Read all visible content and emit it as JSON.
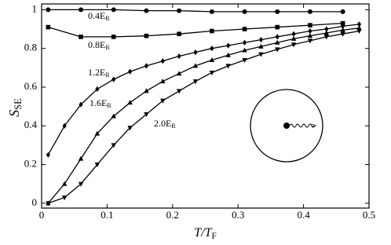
{
  "chart_data": {
    "type": "line",
    "x_label": {
      "text": "T/T",
      "sub": "F"
    },
    "y_label": {
      "text": "S",
      "sub": "SE"
    },
    "xlim": [
      0,
      0.5
    ],
    "ylim": [
      -0.025,
      1.03
    ],
    "xticks": [
      0,
      0.1,
      0.2,
      0.3,
      0.4,
      0.5
    ],
    "yticks": [
      0,
      0.2,
      0.4,
      0.6,
      0.8,
      1
    ],
    "series": [
      {
        "name": "0.4E",
        "name_sub": "R",
        "color": "#000000",
        "marker": "circle",
        "x": [
          0.01,
          0.06,
          0.11,
          0.16,
          0.21,
          0.26,
          0.31,
          0.36,
          0.41,
          0.46
        ],
        "values": [
          1,
          1,
          1,
          0.995,
          0.995,
          0.99,
          0.99,
          0.99,
          0.99,
          0.99
        ]
      },
      {
        "name": "0.8E",
        "name_sub": "R",
        "color": "#000000",
        "marker": "square",
        "x": [
          0.01,
          0.06,
          0.11,
          0.16,
          0.21,
          0.26,
          0.31,
          0.36,
          0.41,
          0.46
        ],
        "values": [
          0.91,
          0.86,
          0.86,
          0.865,
          0.875,
          0.89,
          0.9,
          0.91,
          0.92,
          0.93
        ]
      },
      {
        "name": "1.2E",
        "name_sub": "R",
        "color": "#000000",
        "marker": "diamond",
        "x": [
          0.01,
          0.035,
          0.06,
          0.085,
          0.11,
          0.135,
          0.16,
          0.185,
          0.21,
          0.235,
          0.26,
          0.285,
          0.31,
          0.335,
          0.36,
          0.385,
          0.41,
          0.435,
          0.46,
          0.485
        ],
        "values": [
          0.25,
          0.4,
          0.51,
          0.59,
          0.64,
          0.68,
          0.71,
          0.735,
          0.76,
          0.78,
          0.8,
          0.815,
          0.83,
          0.845,
          0.86,
          0.875,
          0.89,
          0.9,
          0.915,
          0.925
        ]
      },
      {
        "name": "1.6E",
        "name_sub": "R",
        "color": "#000000",
        "marker": "triangle-up",
        "x": [
          0.01,
          0.035,
          0.06,
          0.085,
          0.11,
          0.135,
          0.16,
          0.185,
          0.21,
          0.235,
          0.26,
          0.285,
          0.31,
          0.335,
          0.36,
          0.385,
          0.41,
          0.435,
          0.46,
          0.485
        ],
        "values": [
          0,
          0.1,
          0.23,
          0.36,
          0.45,
          0.52,
          0.58,
          0.63,
          0.67,
          0.71,
          0.74,
          0.765,
          0.79,
          0.81,
          0.83,
          0.85,
          0.865,
          0.88,
          0.895,
          0.905
        ]
      },
      {
        "name": "2.0E",
        "name_sub": "R",
        "color": "#000000",
        "marker": "triangle-down",
        "x": [
          0.01,
          0.035,
          0.06,
          0.085,
          0.11,
          0.135,
          0.16,
          0.185,
          0.21,
          0.235,
          0.26,
          0.285,
          0.31,
          0.335,
          0.36,
          0.385,
          0.41,
          0.435,
          0.46,
          0.485
        ],
        "values": [
          0,
          0.03,
          0.1,
          0.2,
          0.3,
          0.39,
          0.46,
          0.53,
          0.58,
          0.63,
          0.675,
          0.71,
          0.74,
          0.77,
          0.795,
          0.82,
          0.84,
          0.86,
          0.875,
          0.89
        ]
      }
    ]
  }
}
